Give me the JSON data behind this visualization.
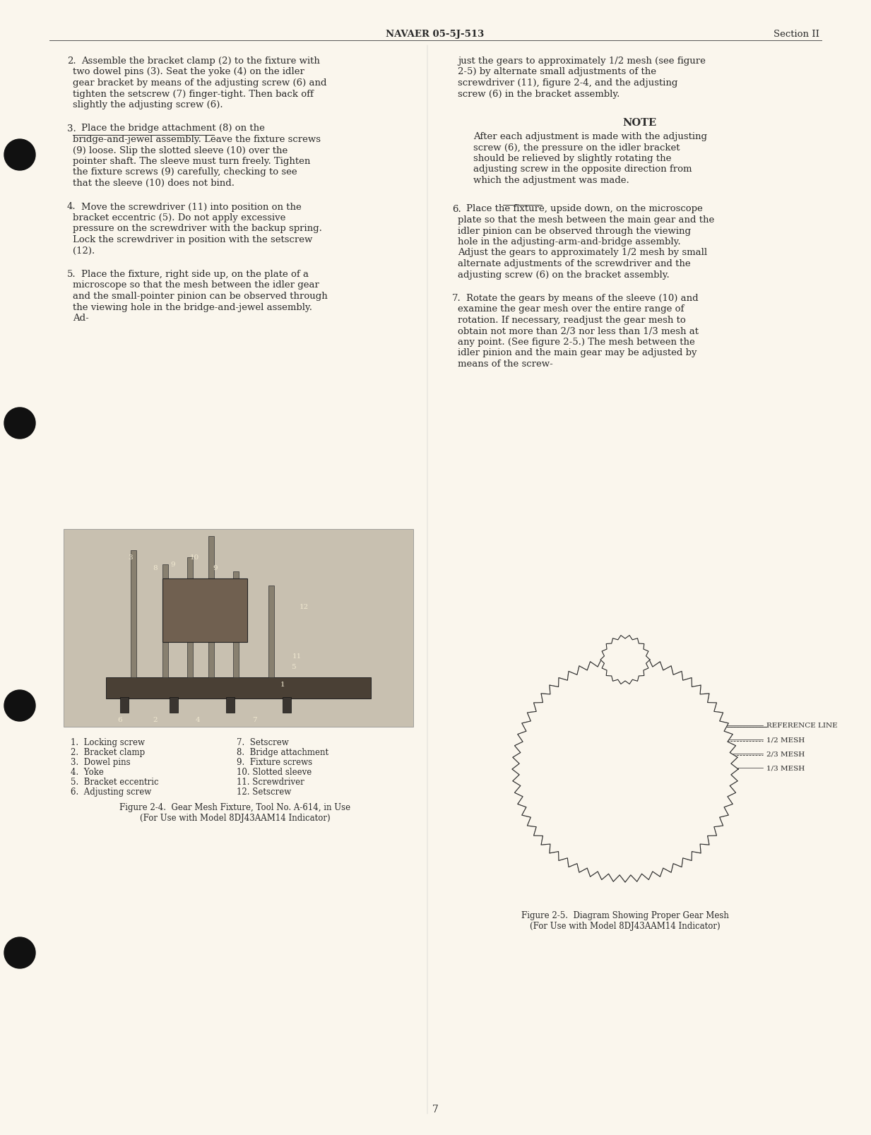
{
  "page_bg_color": "#faf6ed",
  "text_color": "#2a2a2a",
  "header_text_left": "NAVAER 05-5J-513",
  "header_text_right": "Section II",
  "page_number": "7",
  "col1_paragraphs": [
    {
      "number": "2.",
      "text": "Assemble the bracket clamp (2) to the fixture with two dowel pins (3).  Seat the yoke (4) on the idler gear bracket by means of the adjusting screw (6) and tighten the setscrew (7) finger-tight.  Then back off slightly the adjusting screw (6)."
    },
    {
      "number": "3.",
      "text": "Place the bridge attachment (8) on the bridge-and-jewel assembly.  Leave the fixture screws (9) loose.  Slip the slotted sleeve (10) over the pointer shaft.  The sleeve must turn freely.  Tighten the fixture screws (9) carefully, checking to see that the sleeve (10) does not bind."
    },
    {
      "number": "4.",
      "text": "Move the screwdriver (11) into position on the bracket eccentric (5).  Do not apply excessive pressure on the screwdriver with the backup spring.  Lock the screwdriver in position with the setscrew (12)."
    },
    {
      "number": "5.",
      "text": "Place the fixture, right side up, on the plate of a microscope so that the mesh between the idler gear and the small-pointer pinion can be observed through the viewing hole in the bridge-and-jewel assembly.  Adjust the gears to approximately 1/2 mesh (see figure 2-5) by alternate small adjustments of the screwdriver (11), figure 2-4, and the adjusting screw (6) in the bracket assembly."
    }
  ],
  "col2_paragraphs": [
    {
      "text": "just the gears to approximately 1/2 mesh (see figure 2-5) by alternate small adjustments of the screwdriver (11), figure 2-4, and the adjusting screw (6) in the bracket assembly."
    },
    {
      "is_note": true,
      "label": "NOTE",
      "text": "After each adjustment is made with the adjusting screw (6), the pressure on the idler bracket should be relieved by slightly rotating the adjusting screw in the opposite direction from which the adjustment was made."
    },
    {
      "number": "6.",
      "text": "Place the fixture, upside down, on the microscope plate so that the mesh between the main gear and the idler pinion can be observed through the viewing hole in the adjusting-arm-and-bridge assembly.  Adjust the gears to approximately 1/2 mesh by small alternate adjustments of the screwdriver and the adjusting screw (6) on the bracket assembly."
    },
    {
      "number": "7.",
      "text": "Rotate the gears by means of the sleeve (10) and examine the gear mesh over the entire range of rotation.  If necessary, readjust the gear mesh to obtain not more than 2/3 nor less than 1/3 mesh at any point.  (See figure 2-5.)  The mesh between the idler pinion and the main gear may be adjusted by means of the screw-"
    }
  ],
  "fig1_caption": "Figure 2-4.  Gear Mesh Fixture, Tool No. A-614, in Use\n(For Use with Model 8DJ43AAM14 Indicator)",
  "fig1_labels_left": [
    "1.  Locking screw",
    "2.  Bracket clamp",
    "3.  Dowel pins",
    "4.  Yoke",
    "5.  Bracket eccentric",
    "6.  Adjusting screw"
  ],
  "fig1_labels_right": [
    "7.  Setscrew",
    "8.  Bridge attachment",
    "9.  Fixture screws",
    "10. Slotted sleeve",
    "11. Screwdriver",
    "12. Setscrew"
  ],
  "fig2_caption": "Figure 2-5.  Diagram Showing Proper Gear Mesh\n(For Use with Model 8DJ43AAM14 Indicator)",
  "fig2_labels": [
    "REFERENCE LINE",
    "1/2 MESH",
    "2/3 MESH",
    "1/3 MESH"
  ]
}
